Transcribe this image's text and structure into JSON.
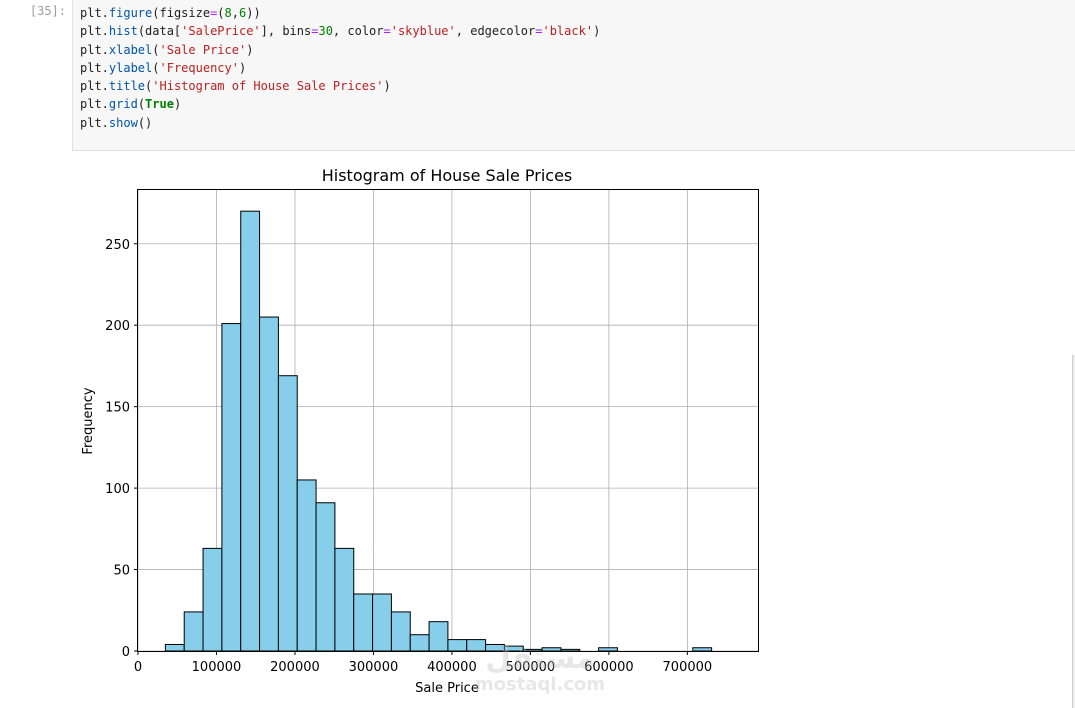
{
  "cell": {
    "prompt": "[35]:",
    "code_lines": [
      [
        [
          "plt.",
          "p"
        ],
        [
          "figure",
          "fn"
        ],
        [
          "(figsize",
          "p"
        ],
        [
          "=",
          "op"
        ],
        [
          "(",
          "p"
        ],
        [
          "8",
          "num"
        ],
        [
          ",",
          "p"
        ],
        [
          "6",
          "num"
        ],
        [
          "))",
          "p"
        ]
      ],
      [
        [
          "plt.",
          "p"
        ],
        [
          "hist",
          "fn"
        ],
        [
          "(data[",
          "p"
        ],
        [
          "'SalePrice'",
          "str"
        ],
        [
          "], bins",
          "p"
        ],
        [
          "=",
          "op"
        ],
        [
          "30",
          "num"
        ],
        [
          ", color",
          "p"
        ],
        [
          "=",
          "op"
        ],
        [
          "'skyblue'",
          "str"
        ],
        [
          ", edgecolor",
          "p"
        ],
        [
          "=",
          "op"
        ],
        [
          "'black'",
          "str"
        ],
        [
          ")",
          "p"
        ]
      ],
      [
        [
          "plt.",
          "p"
        ],
        [
          "xlabel",
          "fn"
        ],
        [
          "(",
          "p"
        ],
        [
          "'Sale Price'",
          "str"
        ],
        [
          ")",
          "p"
        ]
      ],
      [
        [
          "plt.",
          "p"
        ],
        [
          "ylabel",
          "fn"
        ],
        [
          "(",
          "p"
        ],
        [
          "'Frequency'",
          "str"
        ],
        [
          ")",
          "p"
        ]
      ],
      [
        [
          "plt.",
          "p"
        ],
        [
          "title",
          "fn"
        ],
        [
          "(",
          "p"
        ],
        [
          "'Histogram of House Sale Prices'",
          "str"
        ],
        [
          ")",
          "p"
        ]
      ],
      [
        [
          "plt.",
          "p"
        ],
        [
          "grid",
          "fn"
        ],
        [
          "(",
          "p"
        ],
        [
          "True",
          "kw"
        ],
        [
          ")",
          "p"
        ]
      ],
      [
        [
          "plt.",
          "p"
        ],
        [
          "show",
          "fn"
        ],
        [
          "()",
          "p"
        ]
      ]
    ]
  },
  "watermark": {
    "arabic": "مستقل",
    "latin": "mostaql.com"
  },
  "chart_data": {
    "type": "bar",
    "title": "Histogram of House Sale Prices",
    "xlabel": "Sale Price",
    "ylabel": "Frequency",
    "xlim": [
      0,
      790000
    ],
    "ylim": [
      0,
      283
    ],
    "grid": true,
    "bar_color": "#87ceeb",
    "edge_color": "#000000",
    "bin_edges": [
      34900,
      58900,
      82900,
      106900,
      130900,
      154900,
      178900,
      202900,
      226900,
      250900,
      274900,
      298900,
      322900,
      346900,
      370900,
      394900,
      418900,
      442900,
      466900,
      490900,
      514900,
      538900,
      562900,
      586900,
      610900,
      634900,
      658900,
      682900,
      706900,
      730900,
      754900
    ],
    "values": [
      4,
      24,
      63,
      201,
      270,
      205,
      169,
      105,
      91,
      63,
      35,
      35,
      24,
      10,
      18,
      7,
      7,
      4,
      3,
      1,
      2,
      1,
      0,
      2,
      0,
      0,
      0,
      0,
      2,
      0
    ],
    "xticks": [
      0,
      100000,
      200000,
      300000,
      400000,
      500000,
      600000,
      700000
    ],
    "xtick_labels": [
      "0",
      "100000",
      "200000",
      "300000",
      "400000",
      "500000",
      "600000",
      "700000"
    ],
    "yticks": [
      0,
      50,
      100,
      150,
      200,
      250
    ],
    "ytick_labels": [
      "0",
      "50",
      "100",
      "150",
      "200",
      "250"
    ]
  }
}
